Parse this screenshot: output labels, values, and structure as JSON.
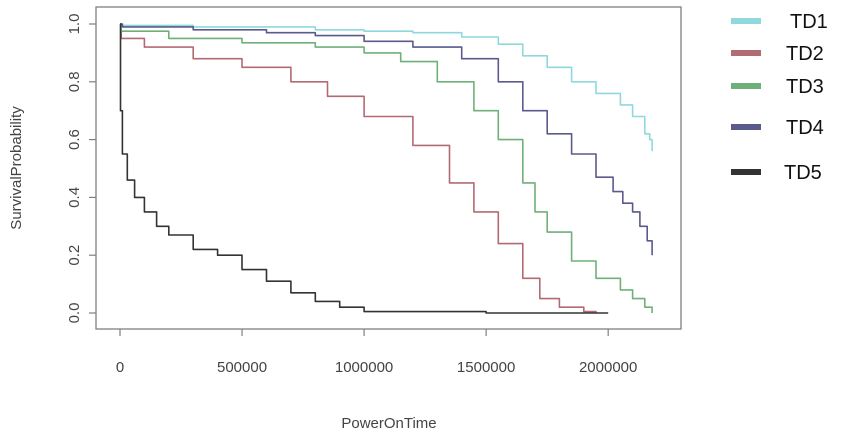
{
  "chart_data": {
    "type": "line",
    "title": "",
    "xlabel": "PowerOnTime",
    "ylabel": "SurvivalProbability",
    "xlim": [
      0,
      2200000
    ],
    "ylim": [
      0,
      1
    ],
    "x_ticks": [
      0,
      500000,
      1000000,
      1500000,
      2000000
    ],
    "x_tick_labels": [
      "0",
      "500000",
      "1000000",
      "1500000",
      "2000000"
    ],
    "y_ticks": [
      0,
      0.2,
      0.4,
      0.6,
      0.8,
      1.0
    ],
    "y_tick_labels": [
      "0.0",
      "0.2",
      "0.4",
      "0.6",
      "0.8",
      "1.0"
    ],
    "grid": false,
    "legend_position": "right",
    "series": [
      {
        "name": "TD1",
        "color": "#8fd8dc",
        "x": [
          0,
          10000,
          300000,
          800000,
          1000000,
          1200000,
          1400000,
          1550000,
          1650000,
          1750000,
          1850000,
          1950000,
          2050000,
          2100000,
          2150000,
          2170000,
          2180000
        ],
        "y": [
          1.0,
          0.995,
          0.99,
          0.98,
          0.975,
          0.97,
          0.955,
          0.93,
          0.89,
          0.85,
          0.8,
          0.76,
          0.72,
          0.68,
          0.62,
          0.6,
          0.56
        ]
      },
      {
        "name": "TD2",
        "color": "#b26a73",
        "x": [
          0,
          5000,
          100000,
          300000,
          500000,
          700000,
          850000,
          1000000,
          1200000,
          1350000,
          1450000,
          1550000,
          1650000,
          1720000,
          1800000,
          1900000,
          1950000
        ],
        "y": [
          1.0,
          0.95,
          0.92,
          0.88,
          0.85,
          0.8,
          0.75,
          0.68,
          0.58,
          0.45,
          0.35,
          0.24,
          0.12,
          0.05,
          0.02,
          0.005,
          0.0
        ]
      },
      {
        "name": "TD3",
        "color": "#6fb07a",
        "x": [
          0,
          5000,
          200000,
          500000,
          800000,
          1000000,
          1150000,
          1300000,
          1450000,
          1550000,
          1650000,
          1700000,
          1750000,
          1850000,
          1950000,
          2050000,
          2100000,
          2150000,
          2180000
        ],
        "y": [
          1.0,
          0.975,
          0.95,
          0.935,
          0.92,
          0.9,
          0.87,
          0.8,
          0.7,
          0.6,
          0.45,
          0.35,
          0.28,
          0.18,
          0.12,
          0.08,
          0.05,
          0.02,
          0.0
        ]
      },
      {
        "name": "TD4",
        "color": "#5a5a8c",
        "x": [
          0,
          10000,
          300000,
          600000,
          800000,
          1000000,
          1200000,
          1400000,
          1550000,
          1650000,
          1750000,
          1850000,
          1950000,
          2020000,
          2060000,
          2100000,
          2130000,
          2160000,
          2180000
        ],
        "y": [
          1.0,
          0.99,
          0.98,
          0.97,
          0.96,
          0.94,
          0.92,
          0.88,
          0.8,
          0.7,
          0.62,
          0.55,
          0.47,
          0.42,
          0.38,
          0.35,
          0.3,
          0.25,
          0.2
        ]
      },
      {
        "name": "TD5",
        "color": "#333333",
        "x": [
          0,
          2000,
          10000,
          30000,
          60000,
          100000,
          150000,
          200000,
          300000,
          400000,
          500000,
          600000,
          700000,
          800000,
          900000,
          1000000,
          1500000,
          2000000
        ],
        "y": [
          1.0,
          0.7,
          0.55,
          0.46,
          0.4,
          0.35,
          0.3,
          0.27,
          0.22,
          0.2,
          0.15,
          0.11,
          0.07,
          0.04,
          0.02,
          0.005,
          0.0,
          0.0
        ]
      }
    ]
  }
}
